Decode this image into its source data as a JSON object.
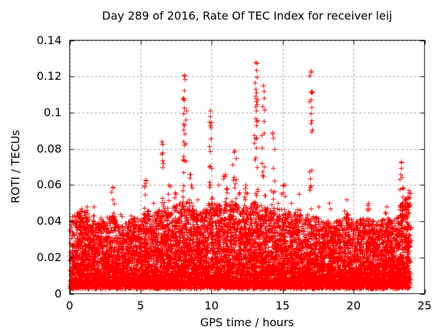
{
  "chart_data": {
    "type": "scatter",
    "title": "Day 289 of 2016, Rate Of TEC Index for receiver leij",
    "xlabel": "GPS time / hours",
    "ylabel": "ROTI / TECUs",
    "xlim": [
      0,
      25
    ],
    "ylim": [
      0,
      0.14
    ],
    "xticks": [
      0,
      5,
      10,
      15,
      20,
      25
    ],
    "xtick_labels": [
      "0",
      "5",
      "10",
      "15",
      "20",
      "25"
    ],
    "yticks": [
      0,
      0.02,
      0.04,
      0.06,
      0.08,
      0.1,
      0.12,
      0.14
    ],
    "ytick_labels": [
      "0",
      "0.02",
      "0.04",
      "0.06",
      "0.08",
      "0.1",
      "0.12",
      "0.14"
    ],
    "grid": {
      "on": true,
      "color": "#a0a0a0",
      "dash": [
        3,
        3
      ]
    },
    "legend": "none",
    "marker": {
      "type": "plus",
      "size": 7,
      "color": "#ff0000"
    },
    "x_data_range": [
      0.02,
      23.97
    ],
    "baseline": {
      "description": "dense noise band of ROTI values for all satellites, 30s cadence",
      "n_points": 10500,
      "y_floor": 0.0045,
      "y_jitter": 0.0025,
      "shape_exponent": 2.0,
      "envelope": [
        [
          0,
          0.041
        ],
        [
          0.5,
          0.045
        ],
        [
          1,
          0.046
        ],
        [
          1.5,
          0.041
        ],
        [
          2,
          0.039
        ],
        [
          2.5,
          0.041
        ],
        [
          3,
          0.045
        ],
        [
          3.5,
          0.038
        ],
        [
          4,
          0.039
        ],
        [
          4.5,
          0.042
        ],
        [
          5,
          0.041
        ],
        [
          5.5,
          0.046
        ],
        [
          6,
          0.043
        ],
        [
          6.5,
          0.049
        ],
        [
          7,
          0.047
        ],
        [
          7.5,
          0.049
        ],
        [
          8,
          0.051
        ],
        [
          8.5,
          0.051
        ],
        [
          9,
          0.045
        ],
        [
          9.5,
          0.047
        ],
        [
          10,
          0.051
        ],
        [
          10.5,
          0.049
        ],
        [
          11,
          0.051
        ],
        [
          11.5,
          0.051
        ],
        [
          12,
          0.047
        ],
        [
          12.5,
          0.047
        ],
        [
          13,
          0.051
        ],
        [
          13.5,
          0.049
        ],
        [
          14,
          0.049
        ],
        [
          14.5,
          0.045
        ],
        [
          15,
          0.047
        ],
        [
          15.5,
          0.045
        ],
        [
          16,
          0.045
        ],
        [
          16.5,
          0.043
        ],
        [
          17,
          0.045
        ],
        [
          17.5,
          0.041
        ],
        [
          18,
          0.041
        ],
        [
          18.5,
          0.039
        ],
        [
          19,
          0.041
        ],
        [
          19.5,
          0.045
        ],
        [
          20,
          0.039
        ],
        [
          20.5,
          0.041
        ],
        [
          21,
          0.043
        ],
        [
          21.5,
          0.039
        ],
        [
          22,
          0.041
        ],
        [
          22.5,
          0.041
        ],
        [
          23,
          0.045
        ],
        [
          23.5,
          0.051
        ],
        [
          24,
          0.056
        ]
      ]
    },
    "spikes": [
      {
        "x": 0.8,
        "peak": 0.047,
        "n": 12
      },
      {
        "x": 1.2,
        "peak": 0.048,
        "n": 10
      },
      {
        "x": 1.7,
        "peak": 0.048,
        "n": 8
      },
      {
        "x": 2.15,
        "peak": 0.042,
        "n": 8
      },
      {
        "x": 3.05,
        "peak": 0.059,
        "n": 14
      },
      {
        "x": 3.6,
        "peak": 0.044,
        "n": 8
      },
      {
        "x": 4.35,
        "peak": 0.043,
        "n": 8
      },
      {
        "x": 5.35,
        "peak": 0.063,
        "n": 16
      },
      {
        "x": 5.9,
        "peak": 0.05,
        "n": 10
      },
      {
        "x": 6.5,
        "peak": 0.084,
        "n": 16
      },
      {
        "x": 6.95,
        "peak": 0.06,
        "n": 12
      },
      {
        "x": 7.4,
        "peak": 0.056,
        "n": 12
      },
      {
        "x": 8.07,
        "peak": 0.121,
        "n": 24
      },
      {
        "x": 8.5,
        "peak": 0.066,
        "n": 14
      },
      {
        "x": 9.0,
        "peak": 0.052,
        "n": 10
      },
      {
        "x": 9.9,
        "peak": 0.101,
        "n": 22
      },
      {
        "x": 10.45,
        "peak": 0.06,
        "n": 10
      },
      {
        "x": 10.95,
        "peak": 0.066,
        "n": 14
      },
      {
        "x": 11.6,
        "peak": 0.079,
        "n": 16
      },
      {
        "x": 11.95,
        "peak": 0.056,
        "n": 10
      },
      {
        "x": 12.4,
        "peak": 0.06,
        "n": 12
      },
      {
        "x": 13.12,
        "peak": 0.128,
        "n": 30
      },
      {
        "x": 13.65,
        "peak": 0.115,
        "n": 18
      },
      {
        "x": 14.3,
        "peak": 0.089,
        "n": 16
      },
      {
        "x": 14.7,
        "peak": 0.05,
        "n": 8
      },
      {
        "x": 15.05,
        "peak": 0.06,
        "n": 12
      },
      {
        "x": 15.6,
        "peak": 0.05,
        "n": 8
      },
      {
        "x": 16.1,
        "peak": 0.055,
        "n": 10
      },
      {
        "x": 17.0,
        "peak": 0.123,
        "n": 18
      },
      {
        "x": 17.5,
        "peak": 0.048,
        "n": 8
      },
      {
        "x": 18.3,
        "peak": 0.05,
        "n": 8
      },
      {
        "x": 19.5,
        "peak": 0.052,
        "n": 10
      },
      {
        "x": 21.0,
        "peak": 0.05,
        "n": 10
      },
      {
        "x": 22.3,
        "peak": 0.048,
        "n": 8
      },
      {
        "x": 23.35,
        "peak": 0.073,
        "n": 16
      },
      {
        "x": 23.9,
        "peak": 0.057,
        "n": 12
      }
    ],
    "outliers": [
      [
        8.05,
        0.1205
      ],
      [
        8.09,
        0.1185
      ],
      [
        8.05,
        0.107
      ],
      [
        8.08,
        0.1025
      ],
      [
        8.02,
        0.0905
      ],
      [
        8.11,
        0.0885
      ],
      [
        7.99,
        0.076
      ],
      [
        9.88,
        0.101
      ],
      [
        9.9,
        0.098
      ],
      [
        9.86,
        0.095
      ],
      [
        9.92,
        0.092
      ],
      [
        13.1,
        0.128
      ],
      [
        13.14,
        0.1235
      ],
      [
        13.08,
        0.113
      ],
      [
        13.12,
        0.111
      ],
      [
        13.16,
        0.101
      ],
      [
        13.1,
        0.097
      ],
      [
        13.13,
        0.093
      ],
      [
        13.09,
        0.0855
      ],
      [
        13.63,
        0.115
      ],
      [
        13.67,
        0.108
      ],
      [
        14.28,
        0.0885
      ],
      [
        14.32,
        0.086
      ],
      [
        16.98,
        0.1225
      ],
      [
        17.02,
        0.111
      ],
      [
        16.99,
        0.1075
      ],
      [
        17.03,
        0.103
      ],
      [
        17.0,
        0.0995
      ],
      [
        16.97,
        0.094
      ],
      [
        23.33,
        0.0725
      ],
      [
        23.37,
        0.0695
      ],
      [
        23.3,
        0.066
      ],
      [
        23.4,
        0.0645
      ],
      [
        6.5,
        0.084
      ],
      [
        6.53,
        0.0825
      ],
      [
        3.05,
        0.0585
      ],
      [
        5.35,
        0.0625
      ],
      [
        11.6,
        0.079
      ]
    ]
  }
}
